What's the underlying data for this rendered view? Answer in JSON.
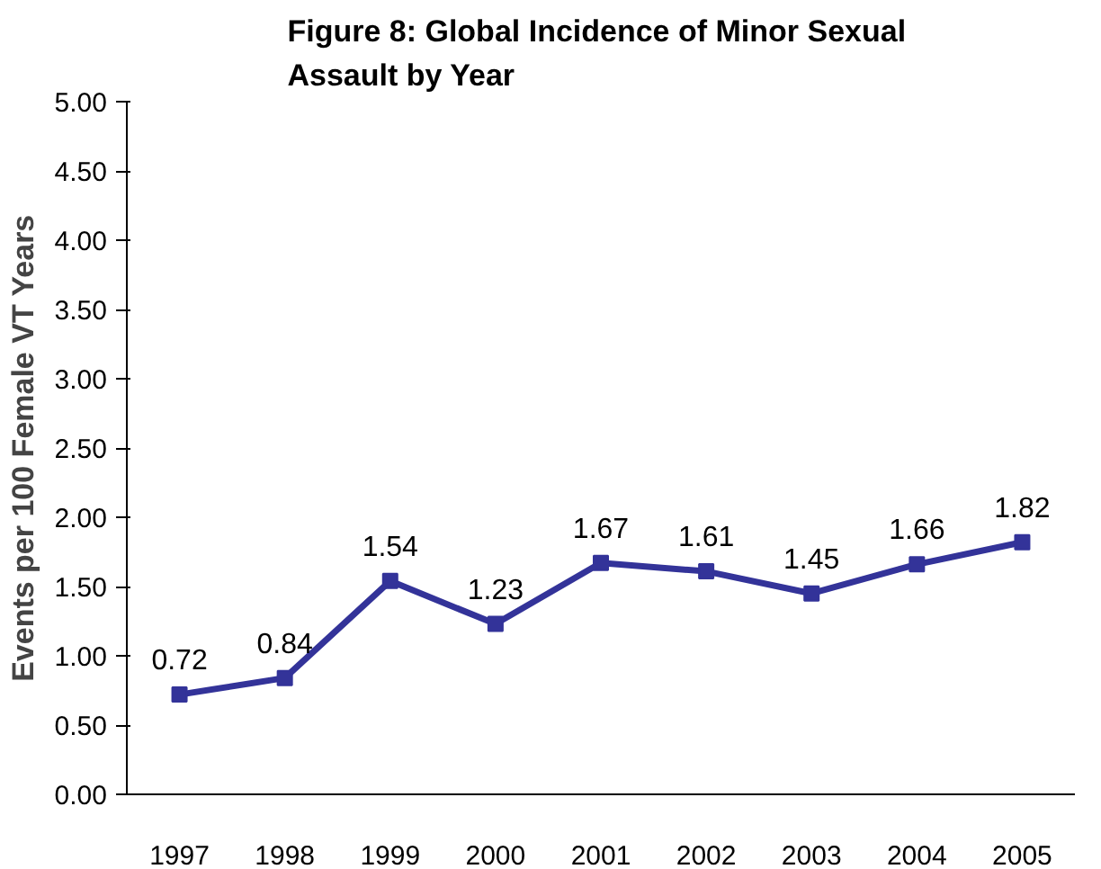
{
  "chart_data": {
    "type": "line",
    "title": "Figure 8:  Global Incidence of Minor Sexual Assault by Year",
    "ylabel": "Events per 100 Female VT Years",
    "categories": [
      "1997",
      "1998",
      "1999",
      "2000",
      "2001",
      "2002",
      "2003",
      "2004",
      "2005"
    ],
    "series": [
      {
        "color": "#333399",
        "values": [
          0.72,
          0.84,
          1.54,
          1.23,
          1.67,
          1.61,
          1.45,
          1.66,
          1.82
        ]
      }
    ],
    "ylim": [
      0,
      5
    ],
    "yticks": [
      {
        "value": 0,
        "label": "0.00"
      },
      {
        "value": 0.5,
        "label": "0.50"
      },
      {
        "value": 1,
        "label": "1.00"
      },
      {
        "value": 1.5,
        "label": "1.50"
      },
      {
        "value": 2,
        "label": "2.00"
      },
      {
        "value": 2.5,
        "label": "2.50"
      },
      {
        "value": 3,
        "label": "3.00"
      },
      {
        "value": 3.5,
        "label": "3.50"
      },
      {
        "value": 4,
        "label": "4.00"
      },
      {
        "value": 4.5,
        "label": "4.50"
      },
      {
        "value": 5,
        "label": "5.00"
      }
    ],
    "data_labels": true,
    "marker": "square",
    "line_style": "solid",
    "grid": false
  }
}
